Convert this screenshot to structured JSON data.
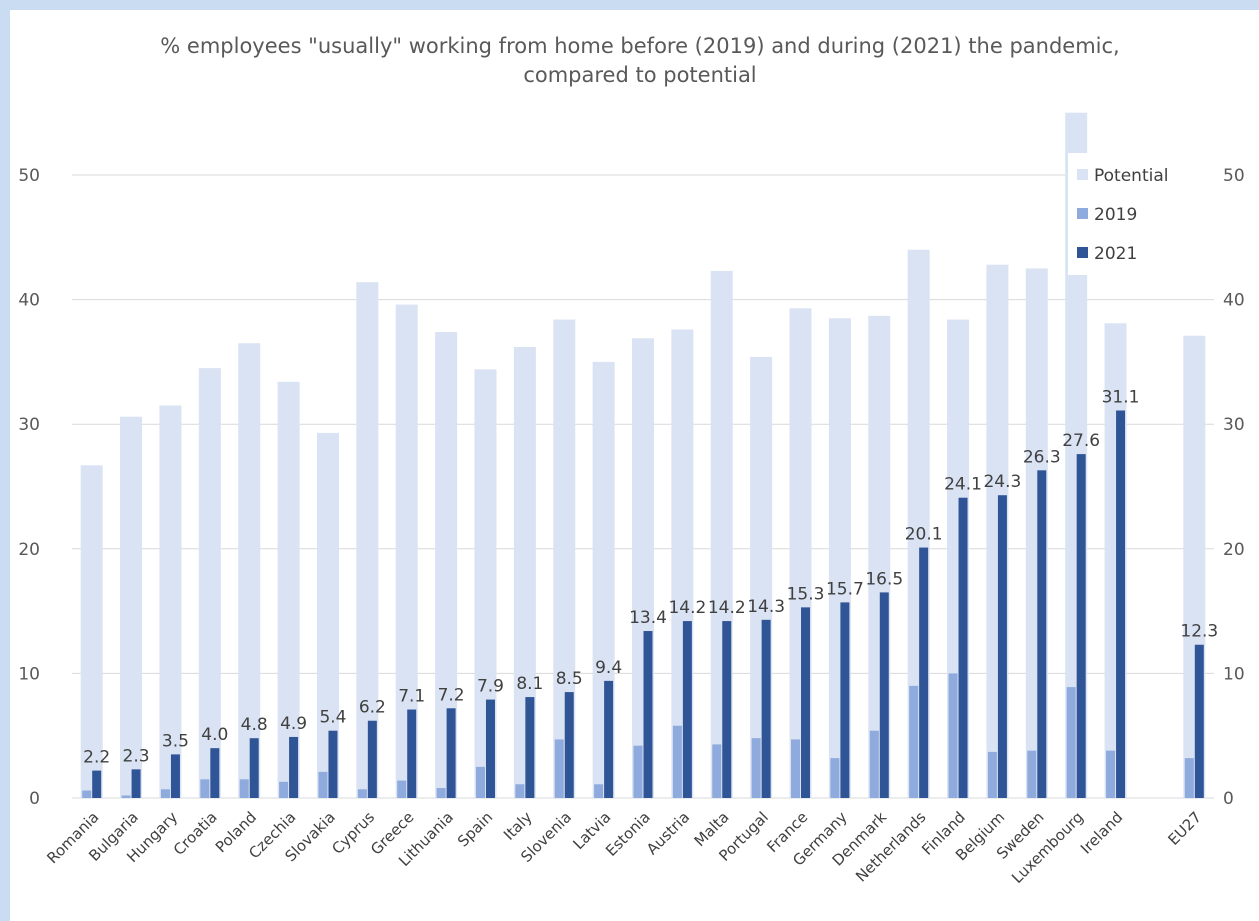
{
  "chart_data": {
    "type": "bar",
    "title": "% employees \"usually\" working from home before (2019) and during (2021) the pandemic, compared to potential",
    "title_lines": [
      "% employees \"usually\" working from home before (2019) and during (2021) the pandemic,",
      "compared to potential"
    ],
    "categories": [
      "Romania",
      "Bulgaria",
      "Hungary",
      "Croatia",
      "Poland",
      "Czechia",
      "Slovakia",
      "Cyprus",
      "Greece",
      "Lithuania",
      "Spain",
      "Italy",
      "Slovenia",
      "Latvia",
      "Estonia",
      "Austria",
      "Malta",
      "Portugal",
      "France",
      "Germany",
      "Denmark",
      "Netherlands",
      "Finland",
      "Belgium",
      "Sweden",
      "Luxembourg",
      "Ireland",
      "",
      "EU27"
    ],
    "series": [
      {
        "name": "Potential",
        "color": "#dae3f3",
        "values": [
          26.7,
          30.6,
          31.5,
          34.5,
          36.5,
          33.4,
          29.3,
          41.4,
          39.6,
          37.4,
          34.4,
          36.2,
          38.4,
          35.0,
          36.9,
          37.6,
          42.3,
          35.4,
          39.3,
          38.5,
          38.7,
          44.0,
          38.4,
          42.8,
          42.5,
          55.0,
          38.1,
          null,
          37.1
        ]
      },
      {
        "name": "2019",
        "color": "#8faadc",
        "values": [
          0.6,
          0.2,
          0.7,
          1.5,
          1.5,
          1.3,
          2.1,
          0.7,
          1.4,
          0.8,
          2.5,
          1.1,
          4.7,
          1.1,
          4.2,
          5.8,
          4.3,
          4.8,
          4.7,
          3.2,
          5.4,
          9.0,
          10.0,
          3.7,
          3.8,
          8.9,
          3.8,
          null,
          3.2
        ]
      },
      {
        "name": "2021",
        "color": "#2f5597",
        "values": [
          2.2,
          2.3,
          3.5,
          4.0,
          4.8,
          4.9,
          5.4,
          6.2,
          7.1,
          7.2,
          7.9,
          8.1,
          8.5,
          9.4,
          13.4,
          14.2,
          14.2,
          14.3,
          15.3,
          15.7,
          16.5,
          20.1,
          24.1,
          24.3,
          26.3,
          27.6,
          31.1,
          null,
          12.3
        ]
      }
    ],
    "data_labels_2021": [
      "2.2",
      "2.3",
      "3.5",
      "4.0",
      "4.8",
      "4.9",
      "5.4",
      "6.2",
      "7.1",
      "7.2",
      "7.9",
      "8.1",
      "8.5",
      "9.4",
      "13.4",
      "14.2",
      "14.2",
      "14.3",
      "15.3",
      "15.7",
      "16.5",
      "20.1",
      "24.1",
      "24.3",
      "26.3",
      "27.6",
      "31.1",
      "",
      "12.3"
    ],
    "ylim": [
      0,
      50
    ],
    "y_ticks": [
      "0",
      "10",
      "20",
      "30",
      "40",
      "50"
    ],
    "secondary_y_ticks": [
      "0",
      "10",
      "20",
      "30",
      "40",
      "50"
    ],
    "grid": true,
    "legend": [
      "Potential",
      "2019",
      "2021"
    ],
    "legend_position": "top-right"
  }
}
